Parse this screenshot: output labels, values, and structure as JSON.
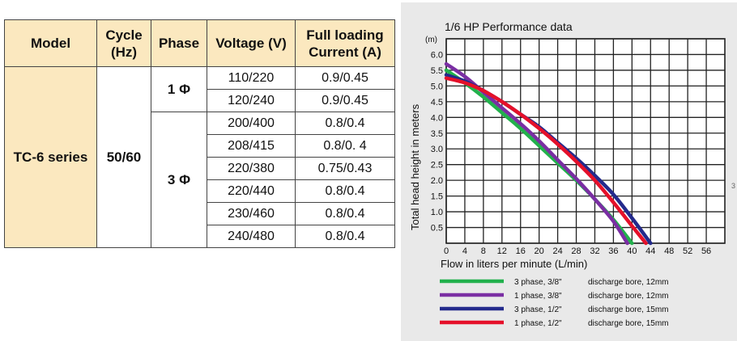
{
  "table": {
    "headers": {
      "model": "Model",
      "cycle": [
        "Cycle",
        "(Hz)"
      ],
      "phase": "Phase",
      "voltage": "Voltage (V)",
      "current": [
        "Full loading",
        "Current (A)"
      ]
    },
    "model": "TC-6 series",
    "cycle": "50/60",
    "phase_groups": [
      {
        "label": "1 Φ",
        "rows": [
          {
            "voltage": "110/220",
            "current": "0.9/0.45"
          },
          {
            "voltage": "120/240",
            "current": "0.9/0.45"
          }
        ]
      },
      {
        "label": "3 Φ",
        "rows": [
          {
            "voltage": "200/400",
            "current": "0.8/0.4"
          },
          {
            "voltage": "208/415",
            "current": "0.8/0. 4"
          },
          {
            "voltage": "220/380",
            "current": "0.75/0.43"
          },
          {
            "voltage": "220/440",
            "current": "0.8/0.4"
          },
          {
            "voltage": "230/460",
            "current": "0.8/0.4"
          },
          {
            "voltage": "240/480",
            "current": "0.8/0.4"
          }
        ]
      }
    ]
  },
  "chart_data": {
    "type": "line",
    "title": "1/6 HP Performance data",
    "xlabel": "Flow in liters per minute (L/min)",
    "ylabel": "Total head height in meters",
    "yunit": "(m)",
    "xlim": [
      0,
      60
    ],
    "ylim": [
      0,
      6.5
    ],
    "xticks": [
      0,
      4,
      8,
      12,
      16,
      20,
      24,
      28,
      32,
      36,
      40,
      44,
      48,
      52,
      56
    ],
    "yticks": [
      0.5,
      1.0,
      1.5,
      2.0,
      2.5,
      3.0,
      3.5,
      4.0,
      4.5,
      5.0,
      5.5,
      6.0
    ],
    "grid": true,
    "legend_position": "bottom",
    "edge_mark": "3",
    "series": [
      {
        "name": "3 phase, 3/8\"",
        "bore": "discharge bore, 12mm",
        "color": "#22b14c",
        "points": [
          [
            0,
            5.5
          ],
          [
            4,
            5.1
          ],
          [
            8,
            4.65
          ],
          [
            12,
            4.15
          ],
          [
            16,
            3.65
          ],
          [
            20,
            3.1
          ],
          [
            24,
            2.55
          ],
          [
            28,
            2.0
          ],
          [
            32,
            1.4
          ],
          [
            36,
            0.75
          ],
          [
            40,
            0.0
          ]
        ]
      },
      {
        "name": "1 phase, 3/8\"",
        "bore": "discharge bore, 12mm",
        "color": "#7a2ea3",
        "points": [
          [
            0,
            5.7
          ],
          [
            4,
            5.3
          ],
          [
            8,
            4.8
          ],
          [
            12,
            4.3
          ],
          [
            16,
            3.8
          ],
          [
            20,
            3.25
          ],
          [
            24,
            2.65
          ],
          [
            28,
            2.05
          ],
          [
            32,
            1.4
          ],
          [
            36,
            0.7
          ],
          [
            39,
            0.0
          ]
        ]
      },
      {
        "name": "3 phase, 1/2\"",
        "bore": "discharge bore, 15mm",
        "color": "#232a8c",
        "points": [
          [
            0,
            5.35
          ],
          [
            4,
            5.15
          ],
          [
            8,
            4.85
          ],
          [
            12,
            4.5
          ],
          [
            16,
            4.1
          ],
          [
            20,
            3.7
          ],
          [
            24,
            3.2
          ],
          [
            28,
            2.7
          ],
          [
            32,
            2.15
          ],
          [
            36,
            1.55
          ],
          [
            40,
            0.8
          ],
          [
            44,
            0.0
          ]
        ]
      },
      {
        "name": "1 phase, 1/2\"",
        "bore": "discharge bore, 15mm",
        "color": "#e5102a",
        "points": [
          [
            0,
            5.25
          ],
          [
            4,
            5.1
          ],
          [
            8,
            4.85
          ],
          [
            12,
            4.5
          ],
          [
            16,
            4.1
          ],
          [
            20,
            3.65
          ],
          [
            24,
            3.15
          ],
          [
            28,
            2.6
          ],
          [
            32,
            2.0
          ],
          [
            36,
            1.3
          ],
          [
            40,
            0.55
          ],
          [
            43,
            0.0
          ]
        ]
      }
    ]
  }
}
